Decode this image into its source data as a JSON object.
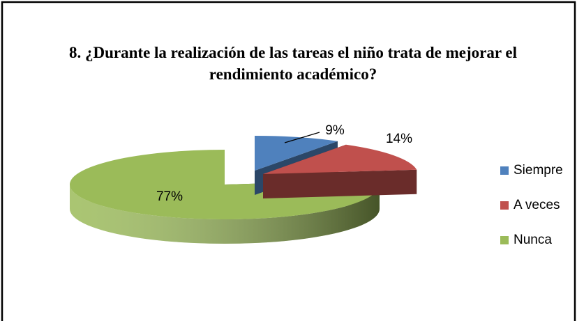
{
  "chart_data": {
    "type": "pie3d",
    "title": "8. ¿Durante la realización de las tareas el niño trata de mejorar el rendimiento académico?",
    "categories": [
      "Siempre",
      "A veces",
      "Nunca"
    ],
    "values": [
      9,
      14,
      77
    ],
    "value_labels": [
      "9%",
      "14%",
      "77%"
    ],
    "colors": [
      "#4f81bd",
      "#c0504d",
      "#9bbb59"
    ],
    "legend": "right"
  }
}
